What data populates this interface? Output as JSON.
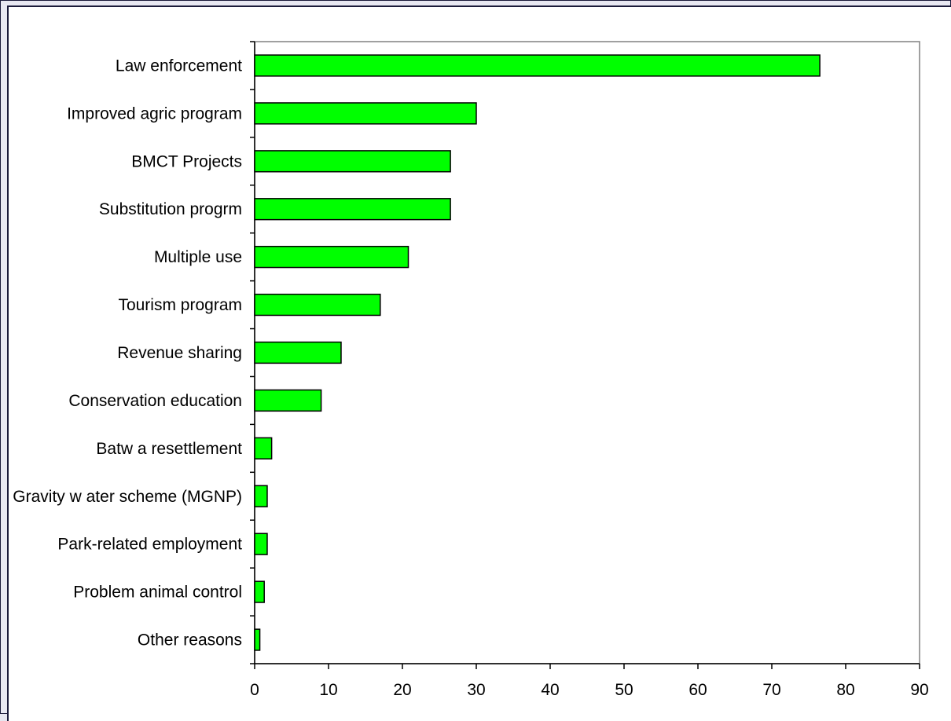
{
  "chart_data": {
    "type": "bar",
    "orientation": "horizontal",
    "categories": [
      "Law  enforcement",
      "Improved agric program",
      "BMCT Projects",
      "Substitution progrm",
      "Multiple use",
      "Tourism program",
      "Revenue sharing",
      "Conservation education",
      "Batw a resettlement",
      "Gravity w ater scheme (MGNP)",
      "Park-related employment",
      "Problem animal control",
      "Other reasons"
    ],
    "values": [
      76.5,
      30,
      26.5,
      26.5,
      20.8,
      17,
      11.7,
      9,
      2.3,
      1.7,
      1.7,
      1.3,
      0.7
    ],
    "xlim": [
      0,
      90
    ],
    "xticks": [
      "0",
      "10",
      "20",
      "30",
      "40",
      "50",
      "60",
      "70",
      "80",
      "90"
    ],
    "title": "",
    "xlabel": "",
    "ylabel": "",
    "grid": false,
    "bar_color": "#00ff00",
    "bar_edge_color": "#000000"
  }
}
